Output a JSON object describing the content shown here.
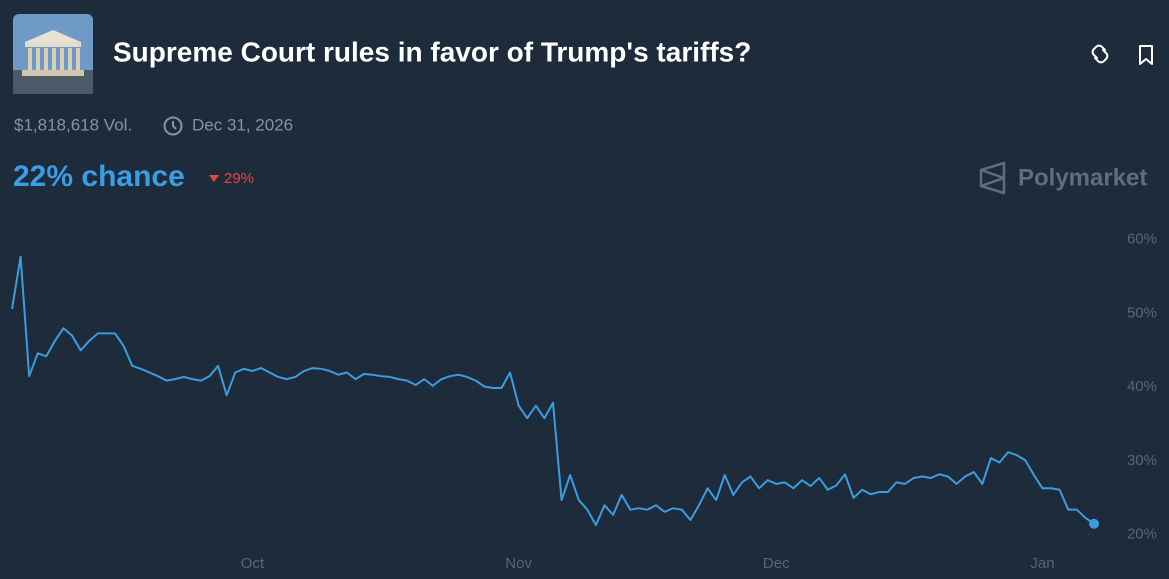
{
  "header": {
    "title": "Supreme Court rules in favor of Trump's tariffs?",
    "volume": "$1,818,618 Vol.",
    "end_date": "Dec 31, 2026",
    "chance": "22% chance",
    "change": "29%",
    "brand": "Polymarket"
  },
  "chart_data": {
    "type": "line",
    "color": "#3b9de0",
    "grid": true,
    "categories": [
      null,
      null,
      null,
      null,
      null,
      null,
      null,
      null,
      null,
      null,
      null,
      null,
      null,
      null,
      null,
      null,
      null,
      null,
      null,
      null,
      null,
      null,
      null,
      null,
      null,
      null,
      null,
      null,
      "Oct",
      null,
      null,
      null,
      null,
      null,
      null,
      null,
      null,
      null,
      null,
      null,
      null,
      null,
      null,
      null,
      null,
      null,
      null,
      null,
      null,
      null,
      null,
      null,
      null,
      null,
      null,
      null,
      null,
      null,
      null,
      "Nov",
      null,
      null,
      null,
      null,
      null,
      null,
      null,
      null,
      null,
      null,
      null,
      null,
      null,
      null,
      null,
      null,
      null,
      null,
      null,
      null,
      null,
      null,
      null,
      null,
      null,
      null,
      null,
      null,
      null,
      "Dec",
      null,
      null,
      null,
      null,
      null,
      null,
      null,
      null,
      null,
      null,
      null,
      null,
      null,
      null,
      null,
      null,
      null,
      null,
      null,
      null,
      null,
      null,
      null,
      null,
      null,
      null,
      null,
      null,
      null,
      null,
      "Jan",
      null,
      null,
      null,
      null,
      null,
      null
    ],
    "values": [
      50.6,
      57.7,
      41.5,
      44.6,
      44.2,
      46.3,
      48,
      47,
      45,
      46.3,
      47.3,
      47.3,
      47.3,
      45.6,
      42.9,
      42.5,
      42,
      41.5,
      40.9,
      41.1,
      41.4,
      41.1,
      40.9,
      41.5,
      42.9,
      38.9,
      42,
      42.5,
      42.2,
      42.6,
      42,
      41.4,
      41.1,
      41.4,
      42.2,
      42.6,
      42.5,
      42.2,
      41.7,
      42,
      41.1,
      41.8,
      41.7,
      41.5,
      41.4,
      41.1,
      40.9,
      40.3,
      41.1,
      40.2,
      41.1,
      41.5,
      41.7,
      41.4,
      40.9,
      40.1,
      39.9,
      39.9,
      42,
      37.5,
      35.8,
      37.5,
      35.8,
      37.9,
      24.7,
      28.1,
      24.7,
      23.4,
      21.3,
      24,
      22.7,
      25.4,
      23.4,
      23.6,
      23.4,
      24,
      23.1,
      23.6,
      23.4,
      22,
      24,
      26.3,
      24.7,
      28.1,
      25.4,
      27.1,
      27.9,
      26.3,
      27.4,
      26.9,
      27.1,
      26.3,
      27.4,
      26.6,
      27.7,
      26.1,
      26.7,
      28.2,
      25,
      26.1,
      25.5,
      25.8,
      25.8,
      27.1,
      26.9,
      27.7,
      27.9,
      27.7,
      28.2,
      27.9,
      26.9,
      27.9,
      28.5,
      26.9,
      30.4,
      29.8,
      31.2,
      30.8,
      30.1,
      28.1,
      26.3,
      26.3,
      26.1,
      23.4,
      23.4,
      22.3,
      21.5
    ],
    "ylim": [
      14,
      62
    ],
    "yticks": [
      {
        "value": 20,
        "label": "20%"
      },
      {
        "value": 30,
        "label": "30%"
      },
      {
        "value": 40,
        "label": "40%"
      },
      {
        "value": 50,
        "label": "50%"
      },
      {
        "value": 60,
        "label": "60%"
      }
    ]
  }
}
